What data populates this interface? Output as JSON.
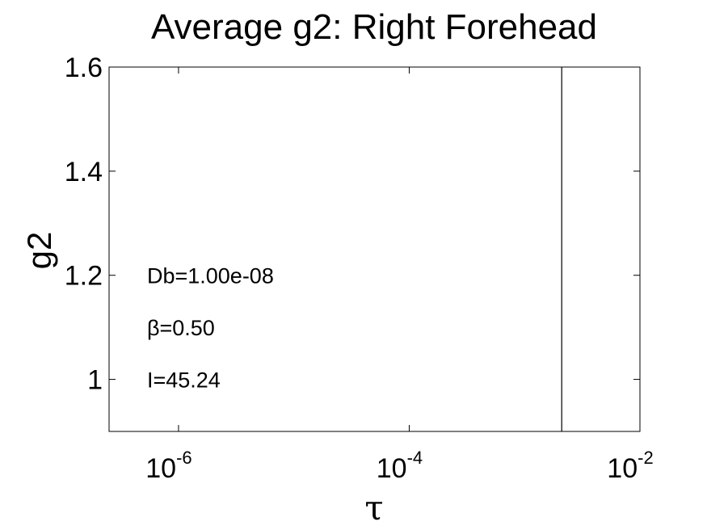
{
  "chart_data": {
    "type": "line",
    "title": "Average g2: Right Forehead",
    "xlabel": "τ",
    "ylabel": "g2",
    "xscale": "log",
    "xlim": [
      2.5e-07,
      0.01
    ],
    "ylim": [
      0.9,
      1.6
    ],
    "xticks": [
      {
        "value": 1e-06,
        "base": "10",
        "exp": "-6"
      },
      {
        "value": 0.0001,
        "base": "10",
        "exp": "-4"
      },
      {
        "value": 0.01,
        "base": "10",
        "exp": "-2"
      }
    ],
    "yticks": [
      {
        "value": 1.0,
        "label": "1"
      },
      {
        "value": 1.2,
        "label": "1.2"
      },
      {
        "value": 1.4,
        "label": "1.4"
      },
      {
        "value": 1.6,
        "label": "1.6"
      }
    ],
    "grid": false,
    "series": [
      {
        "x": [
          0.0021,
          0.0021
        ],
        "y": [
          0.9,
          1.6
        ],
        "color": "#000000"
      }
    ],
    "annotations": [
      {
        "text": "Db=1.00e-08",
        "x": 5e-07,
        "y": 1.2
      },
      {
        "text": "β=0.50",
        "x": 5e-07,
        "y": 1.1
      },
      {
        "text": "I=45.24",
        "x": 5e-07,
        "y": 1.0
      }
    ]
  }
}
